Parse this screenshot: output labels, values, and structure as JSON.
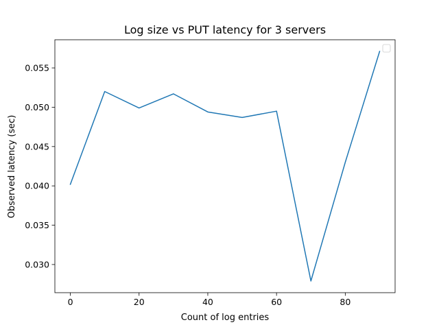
{
  "chart_data": {
    "type": "line",
    "title": "Log size vs PUT latency for 3 servers",
    "xlabel": "Count of log entries",
    "ylabel": "Observed latency (sec)",
    "xlim": [
      -4.5,
      94.5
    ],
    "ylim": [
      0.02642,
      0.05858
    ],
    "x_ticks": [
      0,
      20,
      40,
      60,
      80
    ],
    "y_ticks": [
      0.03,
      0.035,
      0.04,
      0.045,
      0.05,
      0.055
    ],
    "x_tick_labels": [
      "0",
      "20",
      "40",
      "60",
      "80"
    ],
    "y_tick_labels": [
      "0.030",
      "0.035",
      "0.040",
      "0.045",
      "0.050",
      "0.055"
    ],
    "grid": false,
    "legend": {
      "placement": "top-right",
      "entries": []
    },
    "series": [
      {
        "color": "#1f77b4",
        "x": [
          0,
          10,
          20,
          30,
          40,
          50,
          60,
          70,
          80,
          90
        ],
        "y": [
          0.0402,
          0.052,
          0.0499,
          0.0517,
          0.0494,
          0.0487,
          0.0495,
          0.0279,
          0.043,
          0.0571
        ]
      }
    ]
  }
}
